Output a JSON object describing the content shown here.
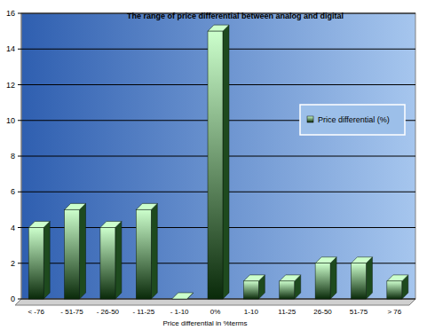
{
  "chart_data": {
    "type": "bar",
    "title": "The range of price differential between analog and digital",
    "x_label": "Price differential in %terms",
    "categories": [
      "< -76",
      "- 51-75",
      "- 26-50",
      "- 11-25",
      "- 1-10",
      "0%",
      "1-10",
      "11-25",
      "26-50",
      "51-75",
      "> 76"
    ],
    "series": [
      {
        "name": "Price differential (%)",
        "color": "#ccffcc",
        "values": [
          4,
          5,
          4,
          5,
          0,
          15,
          1,
          1,
          2,
          2,
          1
        ]
      }
    ],
    "ylim": [
      0,
      16
    ],
    "yticks": [
      0,
      2,
      4,
      6,
      8,
      10,
      12,
      14,
      16
    ],
    "grid": true,
    "legend": "right"
  }
}
